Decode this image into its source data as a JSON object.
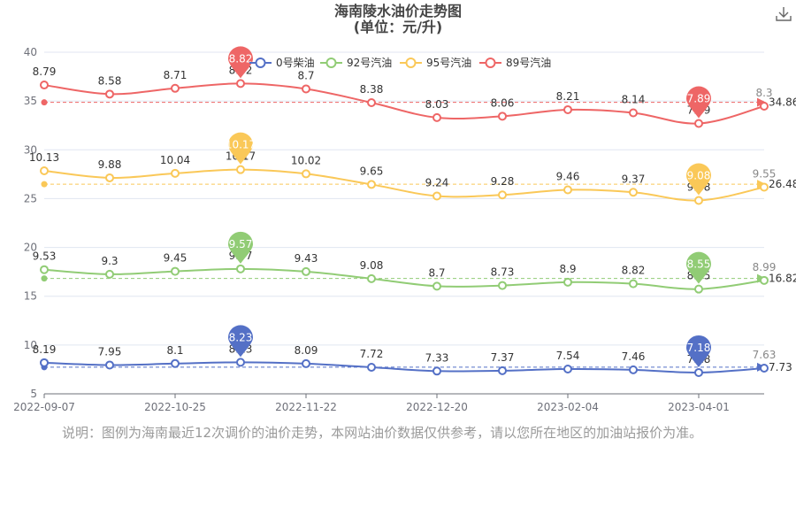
{
  "title": {
    "line1": "海南陵水油价走势图",
    "line2": "(单位：元/升)"
  },
  "toolbar": {
    "download_icon": "download-icon"
  },
  "legend": [
    "0号柴油",
    "92号汽油",
    "95号汽油",
    "89号汽油"
  ],
  "note": "说明：图例为海南最近12次调价的油价走势，本网站油价数据仅供参考，请以您所在地区的加油站报价为准。",
  "chart_data": {
    "type": "line",
    "x_ticks": [
      "2022-09-07",
      "2022-10-25",
      "2022-11-22",
      "2022-12-20",
      "2023-02-04",
      "2023-04-01"
    ],
    "ylim": [
      5,
      40
    ],
    "y_ticks": [
      5,
      10,
      15,
      20,
      25,
      30,
      35,
      40
    ],
    "series": [
      {
        "name": "0号柴油",
        "color": "#5470c6",
        "values": [
          8.19,
          7.95,
          8.1,
          8.23,
          8.09,
          7.72,
          7.33,
          7.37,
          7.54,
          7.46,
          7.18,
          7.63
        ],
        "max": 8.23,
        "min": 7.18,
        "average": 7.73
      },
      {
        "name": "92号汽油",
        "color": "#91cc75",
        "values": [
          9.53,
          9.3,
          9.45,
          9.57,
          9.43,
          9.08,
          8.7,
          8.73,
          8.9,
          8.82,
          8.55,
          8.99
        ],
        "max": 9.57,
        "min": 8.55,
        "average": 16.82
      },
      {
        "name": "95号汽油",
        "color": "#fac858",
        "values": [
          10.13,
          9.88,
          10.04,
          10.17,
          10.02,
          9.65,
          9.24,
          9.28,
          9.46,
          9.37,
          9.08,
          9.55
        ],
        "max": 10.17,
        "min": 9.08,
        "average": 26.48
      },
      {
        "name": "89号汽油",
        "color": "#ee6666",
        "values": [
          8.79,
          8.58,
          8.71,
          8.82,
          8.7,
          8.38,
          8.03,
          8.06,
          8.21,
          8.14,
          7.89,
          8.3
        ],
        "max": 8.82,
        "min": 7.89,
        "average": 34.86
      }
    ]
  }
}
